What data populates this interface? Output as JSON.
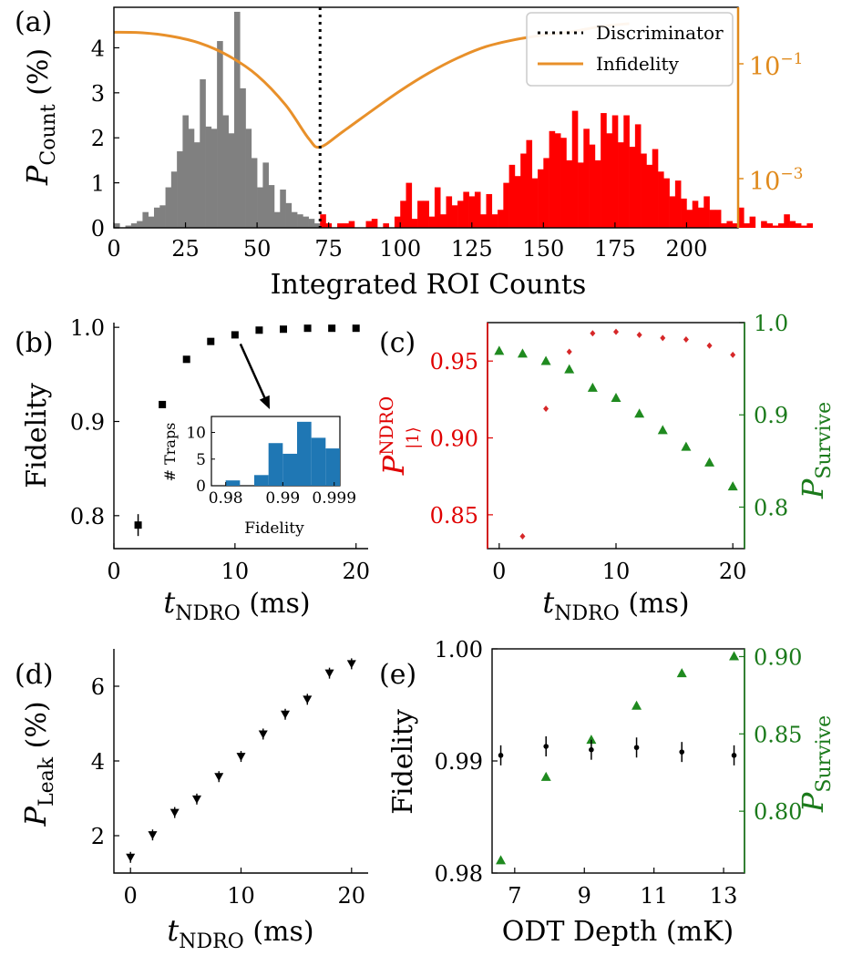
{
  "colors": {
    "gray": "#808080",
    "red": "#ff0000",
    "orange": "#e8902a",
    "green": "#1f8a1f",
    "blue": "#1f77b4",
    "black": "#000000",
    "darkred": "#d62728"
  },
  "panels": {
    "a": "(a)",
    "b": "(b)",
    "c": "(c)",
    "d": "(d)",
    "e": "(e)"
  },
  "chart_data": [
    {
      "panel": "(a)",
      "type": "bar",
      "xlabel": "Integrated ROI Counts",
      "ylabel": "P_Count (%)",
      "ylabel_main": "P",
      "ylabel_sub": "Count",
      "ylabel_tail": " (%)",
      "y2label": "Infidelity (log)",
      "xlim": [
        0,
        218
      ],
      "ylim": [
        0,
        4.9
      ],
      "xticks": [
        "0",
        "25",
        "50",
        "75",
        "100",
        "125",
        "150",
        "175",
        "200"
      ],
      "yticks": [
        "0",
        "1",
        "2",
        "3",
        "4"
      ],
      "y2ticks": [
        "10−1",
        "10−3"
      ],
      "y2_base": "10",
      "y2_exps": [
        "−1",
        "−3"
      ],
      "legend": [
        {
          "label": "Discriminator",
          "style": "dotted"
        },
        {
          "label": "Infidelity",
          "style": "solid-orange"
        }
      ],
      "discriminator_x": 72,
      "bin_width": 2,
      "x_start": 0,
      "gray_values": [
        0.1,
        0,
        0.05,
        0.1,
        0.15,
        0.35,
        0.25,
        0.45,
        0.5,
        0.9,
        1.25,
        1.7,
        2.5,
        2.2,
        1.9,
        3.3,
        2.25,
        2.2,
        4.15,
        2.5,
        2.1,
        4.8,
        3.1,
        2.2,
        1.55,
        0.9,
        1.45,
        0.95,
        0.35,
        0.85,
        0.55,
        0.35,
        0.3,
        0.25,
        0.2,
        0.1
      ],
      "red_values": [
        0.3,
        0.1,
        0,
        0.1,
        0.1,
        0.15,
        0,
        0,
        0.15,
        0.2,
        0,
        0.1,
        0,
        0.25,
        0.6,
        1.0,
        0.2,
        0.6,
        0.6,
        0.25,
        0.9,
        0.3,
        0.7,
        0.5,
        0.6,
        0.8,
        0.7,
        0.8,
        0.3,
        0.75,
        0.3,
        0.4,
        1.0,
        1.4,
        1.15,
        1.65,
        1.95,
        1.1,
        1.3,
        1.55,
        2.15,
        2.1,
        2.0,
        1.5,
        2.6,
        1.45,
        2.2,
        1.85,
        1.5,
        2.55,
        2.1,
        2.5,
        1.9,
        2.5,
        1.8,
        2.3,
        1.65,
        1.4,
        1.75,
        1.25,
        1.1,
        0.7,
        1.05,
        0.65,
        0.4,
        0.6,
        0.45,
        0.7,
        0.4,
        0.4,
        0.1,
        0.15,
        0.1,
        0.45,
        0.1,
        0.25,
        0,
        0.15,
        0.1,
        0.05,
        0.1,
        0.3,
        0.15,
        0.1,
        0.05,
        0.1
      ],
      "infidelity": {
        "x": [
          0,
          10,
          20,
          30,
          40,
          50,
          60,
          68,
          72,
          80,
          90,
          100,
          110,
          120,
          130,
          140,
          150,
          160,
          170,
          180
        ],
        "log10_value": [
          -0.45,
          -0.46,
          -0.52,
          -0.64,
          -0.86,
          -1.2,
          -1.72,
          -2.3,
          -2.45,
          -2.18,
          -1.82,
          -1.47,
          -1.16,
          -0.9,
          -0.7,
          -0.58,
          -0.5,
          -0.44,
          -0.35,
          -0.3
        ]
      }
    },
    {
      "panel": "(b)",
      "type": "scatter",
      "xlabel": "t_NDRO (ms)",
      "xlabel_main": "t",
      "xlabel_sub": "NDRO",
      "xlabel_tail": " (ms)",
      "ylabel": "Fidelity",
      "xlim": [
        0,
        21
      ],
      "ylim": [
        0.765,
        1.005
      ],
      "xticks": [
        "0",
        "10",
        "20"
      ],
      "yticks": [
        "0.8",
        "0.9",
        "1.0"
      ],
      "x": [
        2,
        4,
        6,
        8,
        10,
        12,
        14,
        16,
        18,
        20
      ],
      "y": [
        0.79,
        0.918,
        0.966,
        0.985,
        0.992,
        0.997,
        0.998,
        0.999,
        0.999,
        0.999
      ],
      "inset": {
        "type": "bar",
        "xlabel": "Fidelity",
        "ylabel": "# Traps",
        "xticks": [
          "0.98",
          "0.99",
          "0.999"
        ],
        "yticks": [
          "0",
          "5",
          "10"
        ],
        "xlim": [
          0.9775,
          1.0
        ],
        "ylim": [
          0,
          13
        ],
        "bin_width": 0.0025,
        "bin_starts": [
          0.98,
          0.9825,
          0.985,
          0.9875,
          0.99,
          0.9925,
          0.995,
          0.9975
        ],
        "counts": [
          1,
          0,
          2,
          8,
          6,
          12,
          9,
          7
        ]
      }
    },
    {
      "panel": "(c)",
      "type": "scatter",
      "xlabel": "t_NDRO (ms)",
      "xlabel_main": "t",
      "xlabel_sub": "NDRO",
      "xlabel_tail": " (ms)",
      "ylabel": "P_|1⟩^NDRO",
      "ylabel_main": "P",
      "ylabel_sup": "NDRO",
      "ylabel_sub": "|1⟩",
      "y2label": "P_Survive",
      "y2label_main": "P",
      "y2label_sub": "Survive",
      "xlim": [
        -1,
        21
      ],
      "ylim": [
        0.828,
        0.975
      ],
      "y2lim": [
        0.755,
        1.0
      ],
      "xticks": [
        "0",
        "10",
        "20"
      ],
      "yticks": [
        "0.85",
        "0.90",
        "0.95"
      ],
      "y2ticks": [
        "0.8",
        "0.9",
        "1.0"
      ],
      "series": [
        {
          "x": [
            2,
            4,
            6,
            8,
            10,
            12,
            14,
            16,
            18,
            20
          ],
          "values": [
            0.836,
            0.919,
            0.956,
            0.968,
            0.969,
            0.967,
            0.965,
            0.964,
            0.96,
            0.954
          ]
        },
        {
          "x": [
            0,
            2,
            4,
            6,
            8,
            10,
            12,
            14,
            16,
            18,
            20
          ],
          "values": [
            0.969,
            0.966,
            0.958,
            0.949,
            0.929,
            0.918,
            0.901,
            0.883,
            0.865,
            0.848,
            0.822
          ]
        }
      ]
    },
    {
      "panel": "(d)",
      "type": "scatter",
      "xlabel": "t_NDRO (ms)",
      "xlabel_main": "t",
      "xlabel_sub": "NDRO",
      "xlabel_tail": " (ms)",
      "ylabel": "P_Leak (%)",
      "ylabel_main": "P",
      "ylabel_sub": "Leak",
      "ylabel_tail": " (%)",
      "xlim": [
        -1.5,
        21.5
      ],
      "ylim": [
        1.0,
        7.0
      ],
      "xticks": [
        "0",
        "10",
        "20"
      ],
      "yticks": [
        "2",
        "4",
        "6"
      ],
      "x": [
        0,
        2,
        4,
        6,
        8,
        10,
        12,
        14,
        16,
        18,
        20
      ],
      "y": [
        1.42,
        2.02,
        2.62,
        2.98,
        3.58,
        4.12,
        4.72,
        5.25,
        5.65,
        6.35,
        6.6
      ]
    },
    {
      "panel": "(e)",
      "type": "scatter",
      "xlabel": "ODT Depth (mK)",
      "ylabel": "Fidelity",
      "y2label": "P_Survive",
      "y2label_main": "P",
      "y2label_sub": "Survive",
      "xlim": [
        6.35,
        13.6
      ],
      "ylim": [
        0.98,
        1.0
      ],
      "y2lim": [
        0.76,
        0.905
      ],
      "xticks": [
        "7",
        "9",
        "11",
        "13"
      ],
      "yticks": [
        "0.98",
        "0.99",
        "1.00"
      ],
      "y2ticks": [
        "0.80",
        "0.85",
        "0.90"
      ],
      "series": [
        {
          "x": [
            6.6,
            7.9,
            9.2,
            10.5,
            11.8,
            13.3
          ],
          "values": [
            0.9905,
            0.9913,
            0.991,
            0.9912,
            0.9908,
            0.9905
          ]
        },
        {
          "x": [
            6.6,
            7.9,
            9.2,
            10.5,
            11.8,
            13.3
          ],
          "values": [
            0.768,
            0.822,
            0.846,
            0.868,
            0.889,
            0.9
          ]
        }
      ]
    }
  ]
}
